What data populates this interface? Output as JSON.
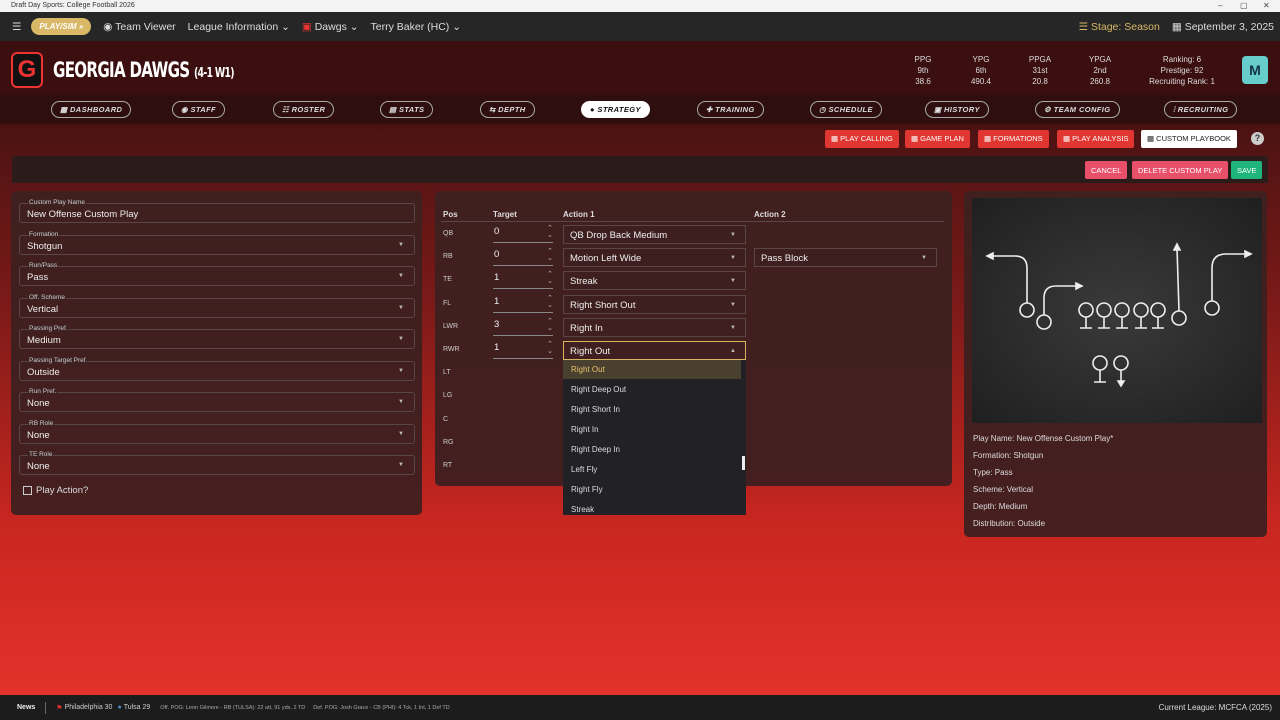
{
  "window": {
    "title": "Draft Day Sports: College Football 2026",
    "min": "–",
    "max": "▢",
    "close": "✕"
  },
  "topnav": {
    "play_sim": "PLAY/SIM »",
    "team_viewer": "Team Viewer",
    "league_info": "League Information ⌄",
    "team": "Dawgs ⌄",
    "coach": "Terry Baker (HC) ⌄",
    "stage": "Stage: Season",
    "date": "September 3, 2025"
  },
  "team": {
    "logo": "G",
    "name": "GEORGIA DAWGS",
    "record": "(4-1 W1)",
    "stats": [
      {
        "label": "PPG",
        "rank": "9th",
        "value": "38.6"
      },
      {
        "label": "YPG",
        "rank": "6th",
        "value": "490.4"
      },
      {
        "label": "PPGA",
        "rank": "31st",
        "value": "20.8"
      },
      {
        "label": "YPGA",
        "rank": "2nd",
        "value": "260.8"
      }
    ],
    "ranking": "Ranking: 6",
    "prestige": "Prestige: 92",
    "recruiting_rank": "Recruiting Rank: 1"
  },
  "tabs": [
    "DASHBOARD",
    "STAFF",
    "ROSTER",
    "STATS",
    "DEPTH",
    "STRATEGY",
    "TRAINING",
    "SCHEDULE",
    "HISTORY",
    "TEAM CONFIG",
    "RECRUITING"
  ],
  "active_tab": "STRATEGY",
  "subtabs": [
    "PLAY CALLING",
    "GAME PLAN",
    "FORMATIONS",
    "PLAY ANALYSIS",
    "CUSTOM PLAYBOOK"
  ],
  "active_subtab": "CUSTOM PLAYBOOK",
  "actions": {
    "cancel": "CANCEL",
    "delete": "DELETE CUSTOM PLAY",
    "save": "SAVE",
    "help": "?"
  },
  "colors": {
    "accent_red": "#e03530",
    "cancel": "#e8506a",
    "save": "#1fb57a",
    "highlight": "#d8b460"
  },
  "form": {
    "fields": [
      {
        "label": "Custom Play Name",
        "value": "New Offense Custom Play"
      },
      {
        "label": "Formation",
        "value": "Shotgun"
      },
      {
        "label": "Run/Pass",
        "value": "Pass"
      },
      {
        "label": "Off. Scheme",
        "value": "Vertical"
      },
      {
        "label": "Passing Pref.",
        "value": "Medium"
      },
      {
        "label": "Passing Target Pref.",
        "value": "Outside"
      },
      {
        "label": "Run Pref.",
        "value": "None"
      },
      {
        "label": "RB Role",
        "value": "None"
      },
      {
        "label": "TE Role",
        "value": "None"
      }
    ],
    "play_action": "Play Action?",
    "play_action_checked": false
  },
  "assign": {
    "headers": {
      "pos": "Pos",
      "target": "Target",
      "action1": "Action 1",
      "action2": "Action 2"
    },
    "rows": [
      {
        "pos": "QB",
        "target": "0",
        "action1": "QB Drop Back Medium",
        "action2": ""
      },
      {
        "pos": "RB",
        "target": "0",
        "action1": "Motion Left Wide",
        "action2": "Pass Block"
      },
      {
        "pos": "TE",
        "target": "1",
        "action1": "Streak",
        "action2": ""
      },
      {
        "pos": "FL",
        "target": "1",
        "action1": "Right Short Out",
        "action2": ""
      },
      {
        "pos": "LWR",
        "target": "3",
        "action1": "Right In",
        "action2": ""
      },
      {
        "pos": "RWR",
        "target": "1",
        "action1": "Right Out",
        "action2": ""
      },
      {
        "pos": "LT"
      },
      {
        "pos": "LG"
      },
      {
        "pos": "C"
      },
      {
        "pos": "RG"
      },
      {
        "pos": "RT"
      }
    ],
    "dropdown": [
      "Right Out",
      "Right Deep Out",
      "Right Short In",
      "Right In",
      "Right Deep In",
      "Left Fly",
      "Right Fly",
      "Streak"
    ],
    "dropdown_selected": "Right Out"
  },
  "preview": {
    "lines": [
      "Play Name: New Offense Custom Play*",
      "Formation: Shotgun",
      "Type: Pass",
      "Scheme: Vertical",
      "Depth: Medium",
      "Distribution: Outside"
    ]
  },
  "footer": {
    "news": "News",
    "game": [
      {
        "team": "Philadelphia 30"
      },
      {
        "team": "Tulsa 29"
      }
    ],
    "off_pog": "Off. POG: Leon Gilmore - RB (TULSA): 22 att, 91 yds, 2 TD",
    "def_pog": "Def. POG: Josh Grace - CB (PHI): 4 Tck, 1 Int, 1 Def TD",
    "league": "Current League: MCFCA (2025)"
  }
}
